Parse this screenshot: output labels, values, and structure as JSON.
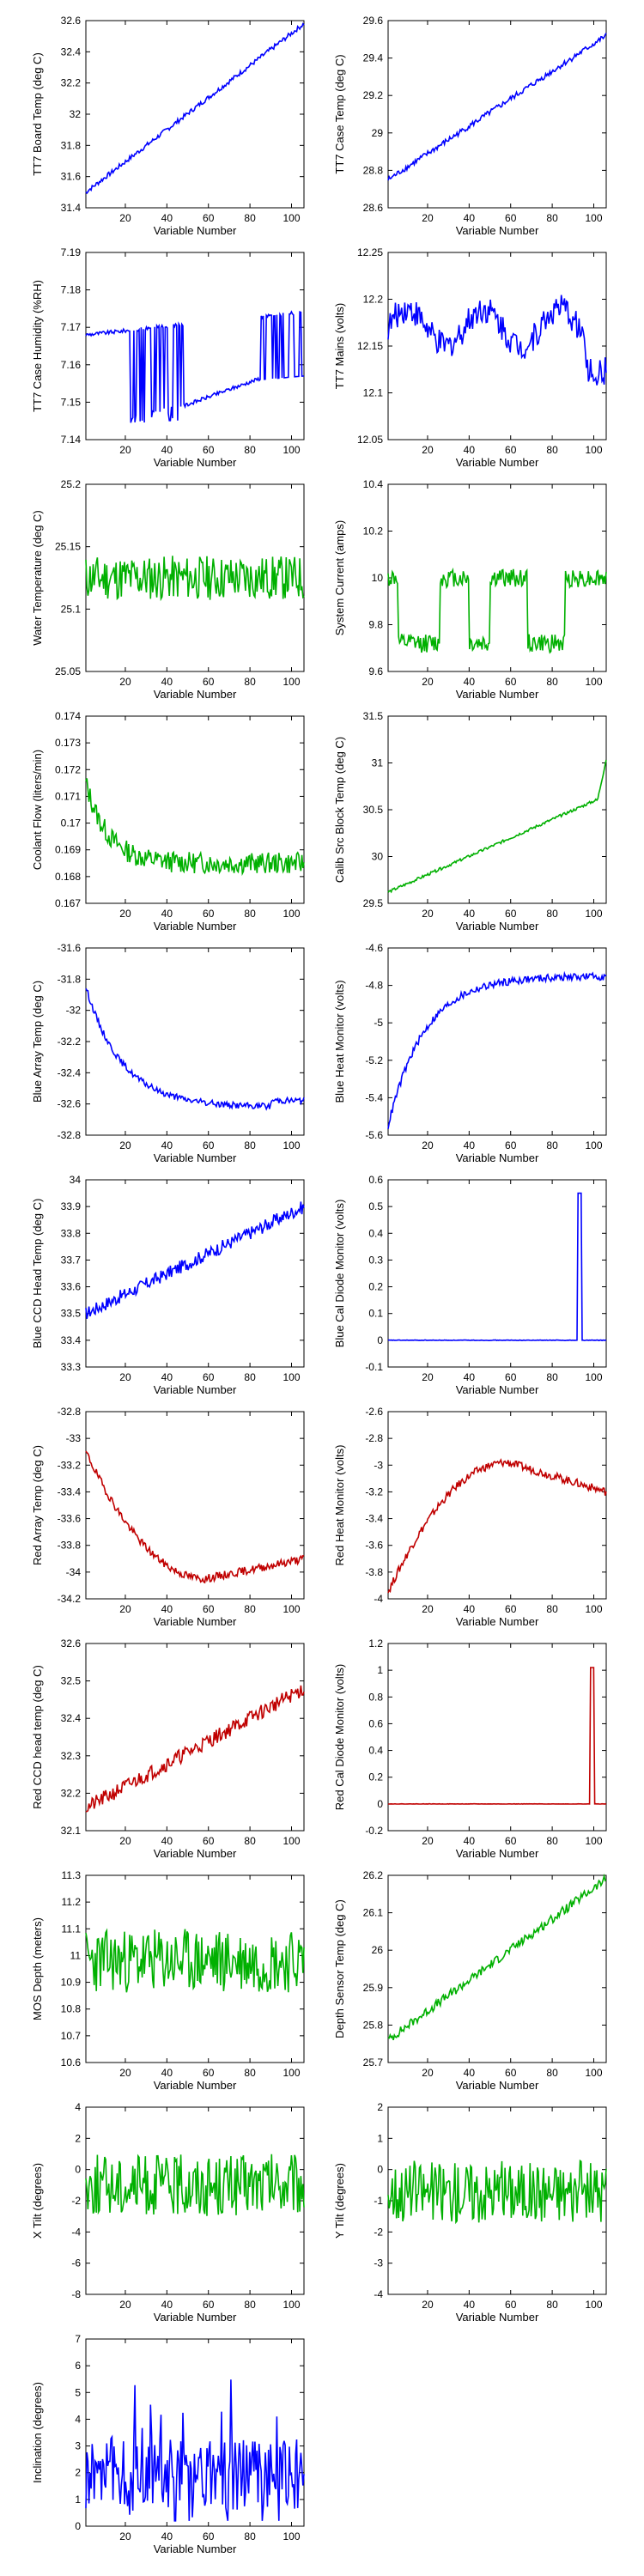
{
  "xlabel": "Variable Number",
  "xticks": [
    20,
    40,
    60,
    80,
    100
  ],
  "xlim": [
    1,
    106
  ],
  "chart_data": [
    {
      "type": "line",
      "ylabel": "TT7 Board Temp (deg C)",
      "color": "#0000ff",
      "ylim": [
        31.4,
        32.6
      ],
      "yticks": [
        "32.6",
        "32.4",
        "32.2",
        "32",
        "31.8",
        "31.6",
        "31.4"
      ],
      "shape": "ramp",
      "x_range": [
        1,
        106
      ],
      "y_start": 31.5,
      "y_end": 32.58,
      "noise": 0.015
    },
    {
      "type": "line",
      "ylabel": "TT7 Case Temp (deg C)",
      "color": "#0000ff",
      "ylim": [
        28.6,
        29.6
      ],
      "yticks": [
        "29.6",
        "29.4",
        "29.2",
        "29",
        "28.8",
        "28.6"
      ],
      "shape": "ramp",
      "x_range": [
        1,
        106
      ],
      "y_start": 28.75,
      "y_end": 29.52,
      "noise": 0.015
    },
    {
      "type": "line",
      "ylabel": "TT7 Case Humidity (%RH)",
      "color": "#0000ff",
      "ylim": [
        7.14,
        7.19
      ],
      "yticks": [
        "7.19",
        "7.18",
        "7.17",
        "7.16",
        "7.15",
        "7.14"
      ],
      "shape": "humidity",
      "x_range": [
        1,
        106
      ],
      "y_start": 7.168,
      "y_end": 7.16,
      "noise": 0.0005
    },
    {
      "type": "line",
      "ylabel": "TT7 Mains  (volts)",
      "color": "#0000ff",
      "ylim": [
        12.05,
        12.25
      ],
      "yticks": [
        "12.25",
        "12.2",
        "12.15",
        "12.1",
        "12.05"
      ],
      "shape": "mains",
      "x_range": [
        1,
        106
      ],
      "y_start": 12.17,
      "y_end": 12.13,
      "noise": 0.015
    },
    {
      "type": "line",
      "ylabel": "Water Temperature (deg C)",
      "color": "#00b000",
      "ylim": [
        25.05,
        25.2
      ],
      "yticks": [
        "25.2",
        "25.15",
        "25.1",
        "25.05"
      ],
      "shape": "noise",
      "x_range": [
        1,
        106
      ],
      "y_start": 25.125,
      "y_end": 25.125,
      "noise": 0.018
    },
    {
      "type": "line",
      "ylabel": "System Current (amps)",
      "color": "#00b000",
      "ylim": [
        9.6,
        10.4
      ],
      "yticks": [
        "10.4",
        "10.2",
        "10",
        "9.8",
        "9.6"
      ],
      "shape": "current",
      "x_range": [
        1,
        106
      ],
      "y_start": 10.0,
      "y_end": 10.1,
      "noise": 0.04
    },
    {
      "type": "line",
      "ylabel": "Coolant Flow (liters/min)",
      "color": "#00b000",
      "ylim": [
        0.167,
        0.174
      ],
      "yticks": [
        "0.174",
        "0.173",
        "0.172",
        "0.171",
        "0.17",
        "0.169",
        "0.168",
        "0.167"
      ],
      "shape": "flow",
      "x_range": [
        1,
        106
      ],
      "y_start": 0.1715,
      "y_end": 0.1685,
      "noise": 0.0004
    },
    {
      "type": "line",
      "ylabel": "Calib Src Block Temp (deg C)",
      "color": "#00b000",
      "ylim": [
        29.5,
        31.5
      ],
      "yticks": [
        "31.5",
        "31",
        "30.5",
        "30",
        "29.5"
      ],
      "shape": "calib",
      "x_range": [
        1,
        106
      ],
      "y_start": 29.62,
      "y_end": 30.6,
      "noise": 0.015
    },
    {
      "type": "line",
      "ylabel": "Blue Array Temp (deg C)",
      "color": "#0000ff",
      "ylim": [
        -32.8,
        -31.6
      ],
      "yticks": [
        "-31.6",
        "-31.8",
        "-32",
        "-32.2",
        "-32.4",
        "-32.6",
        "-32.8"
      ],
      "shape": "decay",
      "x_range": [
        1,
        106
      ],
      "y_start": -31.85,
      "y_end": -32.62,
      "noise": 0.02
    },
    {
      "type": "line",
      "ylabel": "Blue Heat Monitor (volts)",
      "color": "#0000ff",
      "ylim": [
        -5.6,
        -4.6
      ],
      "yticks": [
        "-4.6",
        "-4.8",
        "-5",
        "-5.2",
        "-5.4",
        "-5.6"
      ],
      "shape": "rise",
      "x_range": [
        1,
        106
      ],
      "y_start": -5.55,
      "y_end": -4.75,
      "noise": 0.02
    },
    {
      "type": "line",
      "ylabel": "Blue CCD Head Temp (deg C)",
      "color": "#0000ff",
      "ylim": [
        33.3,
        34
      ],
      "yticks": [
        "34",
        "33.9",
        "33.8",
        "33.7",
        "33.6",
        "33.5",
        "33.4",
        "33.3"
      ],
      "shape": "ramp",
      "x_range": [
        1,
        106
      ],
      "y_start": 33.5,
      "y_end": 33.9,
      "noise": 0.025
    },
    {
      "type": "line",
      "ylabel": "Blue Cal Diode Monitor (volts)",
      "color": "#0000ff",
      "ylim": [
        -0.1,
        0.6
      ],
      "yticks": [
        "0.6",
        "0.5",
        "0.4",
        "0.3",
        "0.2",
        "0.1",
        "0",
        "-0.1"
      ],
      "shape": "spike",
      "x_range": [
        1,
        106
      ],
      "y_start": 0.0,
      "y_end": 0.0,
      "spike_x": [
        92,
        94
      ],
      "spike_y": 0.55,
      "noise": 0.001
    },
    {
      "type": "line",
      "ylabel": "Red Array Temp (deg C)",
      "color": "#c00000",
      "ylim": [
        -34.2,
        -32.8
      ],
      "yticks": [
        "-32.8",
        "-33",
        "-33.2",
        "-33.4",
        "-33.6",
        "-33.8",
        "-34",
        "-34.2"
      ],
      "shape": "bowl",
      "x_range": [
        1,
        106
      ],
      "y_start": -33.1,
      "y_end": -33.9,
      "noise": 0.03
    },
    {
      "type": "line",
      "ylabel": "Red Heat Monitor (volts)",
      "color": "#c00000",
      "ylim": [
        -4,
        -2.6
      ],
      "yticks": [
        "-2.6",
        "-2.8",
        "-3",
        "-3.2",
        "-3.4",
        "-3.6",
        "-3.8",
        "-4"
      ],
      "shape": "hump",
      "x_range": [
        1,
        106
      ],
      "y_start": -3.95,
      "y_end": -3.2,
      "noise": 0.03
    },
    {
      "type": "line",
      "ylabel": "Red CCD head temp (deg C)",
      "color": "#c00000",
      "ylim": [
        32.1,
        32.6
      ],
      "yticks": [
        "32.6",
        "32.5",
        "32.4",
        "32.3",
        "32.2",
        "32.1"
      ],
      "shape": "ramp",
      "x_range": [
        1,
        106
      ],
      "y_start": 32.16,
      "y_end": 32.48,
      "noise": 0.02
    },
    {
      "type": "line",
      "ylabel": "Red Cal Diode Monitor (volts)",
      "color": "#c00000",
      "ylim": [
        -0.2,
        1.2
      ],
      "yticks": [
        "1.2",
        "1",
        "0.8",
        "0.6",
        "0.4",
        "0.2",
        "0",
        "-0.2"
      ],
      "shape": "spike",
      "x_range": [
        1,
        106
      ],
      "y_start": 0.0,
      "y_end": 0.0,
      "spike_x": [
        98,
        100
      ],
      "spike_y": 1.02,
      "noise": 0.001
    },
    {
      "type": "line",
      "ylabel": "MOS Depth  (meters)",
      "color": "#00b000",
      "ylim": [
        10.6,
        11.3
      ],
      "yticks": [
        "11.3",
        "11.2",
        "11.1",
        "11",
        "10.9",
        "10.8",
        "10.7",
        "10.6"
      ],
      "shape": "noise",
      "x_range": [
        1,
        106
      ],
      "y_start": 10.98,
      "y_end": 10.98,
      "noise": 0.12
    },
    {
      "type": "line",
      "ylabel": "Depth Sensor Temp (deg C)",
      "color": "#00b000",
      "ylim": [
        25.7,
        26.2
      ],
      "yticks": [
        "26.2",
        "26.1",
        "26",
        "25.9",
        "25.8",
        "25.7"
      ],
      "shape": "ramp",
      "x_range": [
        1,
        106
      ],
      "y_start": 25.76,
      "y_end": 26.19,
      "noise": 0.012
    },
    {
      "type": "line",
      "ylabel": "X Tilt  (degrees)",
      "color": "#00b000",
      "ylim": [
        -8,
        4
      ],
      "yticks": [
        "4",
        "2",
        "0",
        "-2",
        "-4",
        "-6",
        "-8"
      ],
      "shape": "noise",
      "x_range": [
        1,
        106
      ],
      "y_start": -1.0,
      "y_end": -1.0,
      "noise": 2.0
    },
    {
      "type": "line",
      "ylabel": "Y Tilt  (degrees)",
      "color": "#00b000",
      "ylim": [
        -4,
        2
      ],
      "yticks": [
        "2",
        "1",
        "0",
        "-1",
        "-2",
        "-3",
        "-4"
      ],
      "shape": "noise",
      "x_range": [
        1,
        106
      ],
      "y_start": -0.7,
      "y_end": -0.7,
      "noise": 1.0
    },
    {
      "type": "line",
      "ylabel": "Inclination  (degrees)",
      "color": "#0000ff",
      "ylim": [
        0,
        7
      ],
      "yticks": [
        "7",
        "6",
        "5",
        "4",
        "3",
        "2",
        "1",
        "0"
      ],
      "shape": "incl",
      "x_range": [
        1,
        106
      ],
      "y_start": 2.0,
      "y_end": 2.0,
      "noise": 1.4
    }
  ]
}
